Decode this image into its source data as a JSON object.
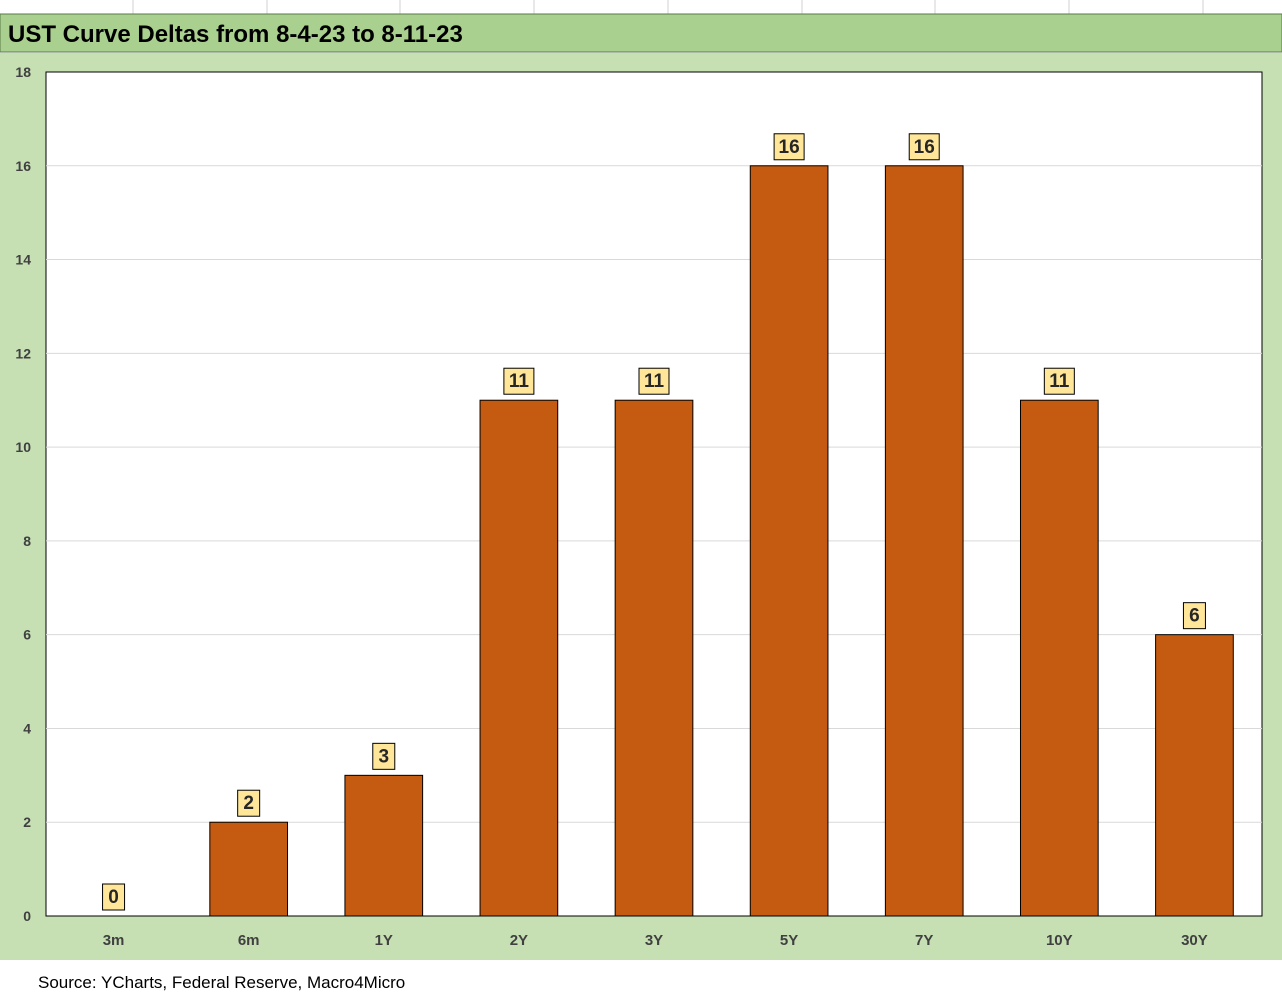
{
  "chart_data": {
    "type": "bar",
    "title": "UST Curve Deltas from 8-4-23 to 8-11-23",
    "categories": [
      "3m",
      "6m",
      "1Y",
      "2Y",
      "3Y",
      "5Y",
      "7Y",
      "10Y",
      "30Y"
    ],
    "series": [
      {
        "values": [
          0,
          2,
          3,
          11,
          11,
          16,
          16,
          11,
          6
        ]
      }
    ],
    "data_labels": [
      "0",
      "2",
      "3",
      "11",
      "11",
      "16",
      "16",
      "11",
      "6"
    ],
    "xlabel": "",
    "ylabel": "",
    "ylim": [
      0,
      18
    ],
    "yticks": [
      0,
      2,
      4,
      6,
      8,
      10,
      12,
      14,
      16,
      18
    ],
    "grid": true,
    "legend": "none",
    "colors": {
      "bar": "#C55A11",
      "bar_outline": "#000000",
      "label_box": "#FFE699",
      "title_bar": "#A9D08E",
      "chart_frame": "#C6E0B4",
      "gridline": "#D9D9D9",
      "tick_text": "#404040"
    }
  },
  "source_note": "Source: YCharts, Federal Reserve, Macro4Micro"
}
